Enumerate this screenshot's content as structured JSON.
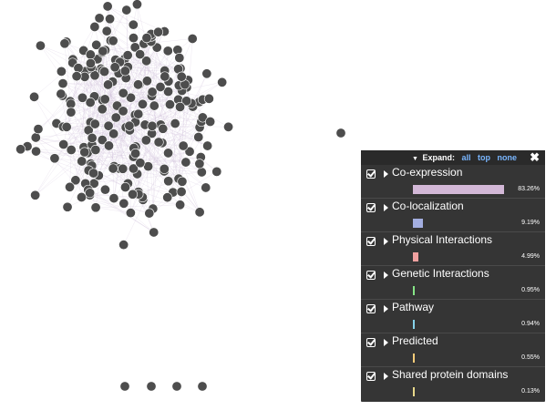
{
  "legend": {
    "expand_label": "Expand:",
    "expand_links": [
      "all",
      "top",
      "none"
    ],
    "close_icon": "close-icon",
    "items": [
      {
        "label": "Co-expression",
        "percent": "83.26%",
        "value": 83.26,
        "color": "#d3b8d7",
        "checked": true
      },
      {
        "label": "Co-localization",
        "percent": "9.19%",
        "value": 9.19,
        "color": "#a3aee0",
        "checked": true
      },
      {
        "label": "Physical Interactions",
        "percent": "4.99%",
        "value": 4.99,
        "color": "#f0a1a0",
        "checked": true
      },
      {
        "label": "Genetic Interactions",
        "percent": "0.95%",
        "value": 0.95,
        "color": "#86e586",
        "checked": true
      },
      {
        "label": "Pathway",
        "percent": "0.94%",
        "value": 0.94,
        "color": "#86d3ea",
        "checked": true
      },
      {
        "label": "Predicted",
        "percent": "0.55%",
        "value": 0.55,
        "color": "#f7cc79",
        "checked": true
      },
      {
        "label": "Shared protein domains",
        "percent": "0.13%",
        "value": 0.13,
        "color": "#e8d88a",
        "checked": true
      }
    ]
  },
  "network": {
    "node_color": "#4d4d4d",
    "edge_color": "#cbb9d6"
  }
}
